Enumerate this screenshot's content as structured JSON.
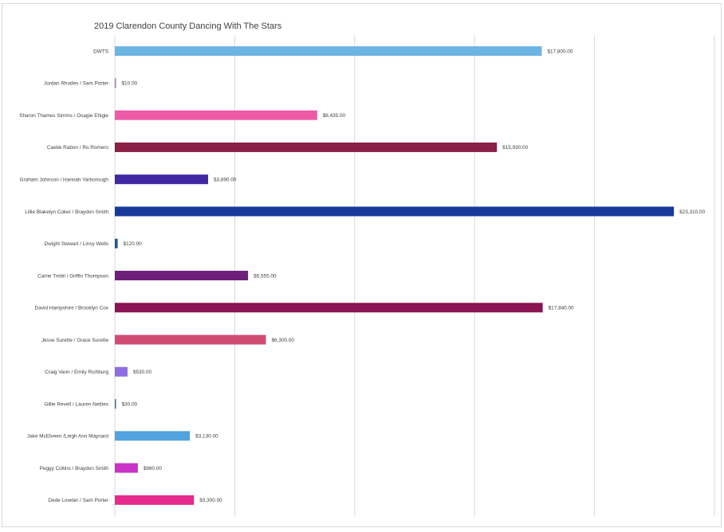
{
  "chart_data": {
    "type": "bar",
    "orientation": "horizontal",
    "title": "2019 Clarendon County Dancing With The Stars",
    "xlabel": "",
    "ylabel": "",
    "xlim": [
      0,
      25000
    ],
    "grid": true,
    "legend": "none",
    "categories": [
      "DWTS",
      "Jordan Rhodes / Sam Porter",
      "Sharon Thames Simms / Osagie Ehigie",
      "Caetie Rabon / Ro Romero",
      "Graham Johnson / Hannah Yarborough",
      "Lillie Blakelyn Coker / Braydon Smith",
      "Dwight Stewart / Linsy Wells",
      "Carrie Trebil / Griffin Thompson",
      "David Hampshire / Brooklyn Cox",
      "Jesse Surette / Grace Surette",
      "Craig Vann / Emily Richburg",
      "Gillie Revell / Lauren Nettles",
      "Jake McElveen /Leigh Ann Maynard",
      "Peggy Collins / Braydon Smith",
      "Dede Lowder / Sam Porter"
    ],
    "values": [
      17800,
      10,
      8435,
      15930,
      3890,
      23310,
      120,
      5555,
      17840,
      6300,
      530,
      30,
      3130,
      960,
      3300
    ],
    "value_labels": [
      "$17,800.00",
      "$10.00",
      "$8,435.00",
      "$15,930.00",
      "$3,890.00",
      "$23,310.00",
      "$120.00",
      "$5,555.00",
      "$17,840.00",
      "$6,300.00",
      "$530.00",
      "$30.00",
      "$3,130.00",
      "$960.00",
      "$3,300.00"
    ],
    "colors": [
      "#6cb4e2",
      "#c45bd1",
      "#ec5aa8",
      "#8b1f45",
      "#4128a2",
      "#17399a",
      "#1f5b8d",
      "#6e1f7a",
      "#8b1455",
      "#d14b72",
      "#8e6ee0",
      "#3d6aa0",
      "#52a3df",
      "#c834c6",
      "#e52a8b"
    ]
  }
}
